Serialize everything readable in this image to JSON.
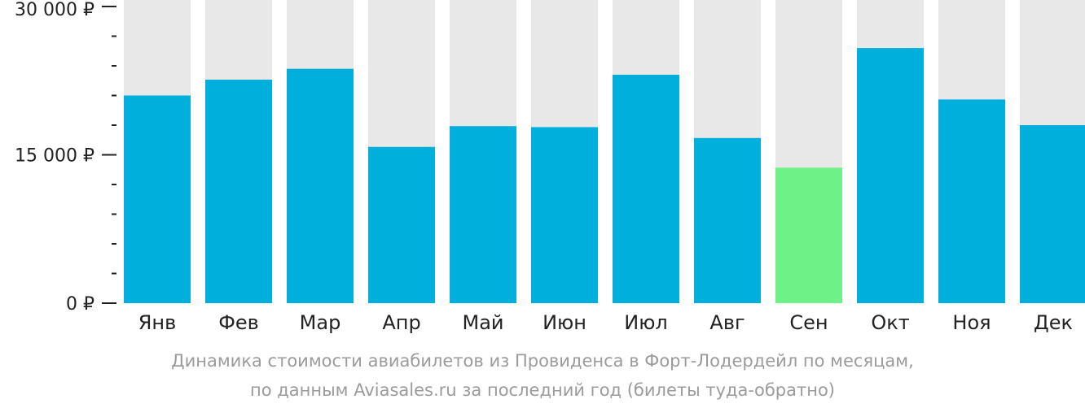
{
  "chart_data": {
    "type": "bar",
    "categories": [
      "Янв",
      "Фев",
      "Мар",
      "Апр",
      "Май",
      "Июн",
      "Июл",
      "Авг",
      "Сен",
      "Окт",
      "Ноя",
      "Дек"
    ],
    "values": [
      21000,
      22600,
      23700,
      15800,
      17900,
      17800,
      23100,
      16700,
      13700,
      25800,
      20600,
      18000
    ],
    "highlight_index": 8,
    "ylim": [
      0,
      30000
    ],
    "yticks": [
      0,
      15000,
      30000
    ],
    "ytick_labels": [
      "0 ₽",
      "15 000 ₽",
      "30 000 ₽"
    ],
    "minor_tick_step": 3000,
    "title": "",
    "xlabel": "",
    "ylabel": "",
    "grid": false,
    "colors": {
      "bar": "#00afdc",
      "highlight": "#6ef288",
      "background_column": "#e8e8e8",
      "axis": "#222222"
    }
  },
  "caption": {
    "line1": "Динамика стоимости авиабилетов из Провиденса в Форт-Лодердейл по месяцам,",
    "line2": "по данным Aviasales.ru за последний год (билеты туда-обратно)"
  }
}
